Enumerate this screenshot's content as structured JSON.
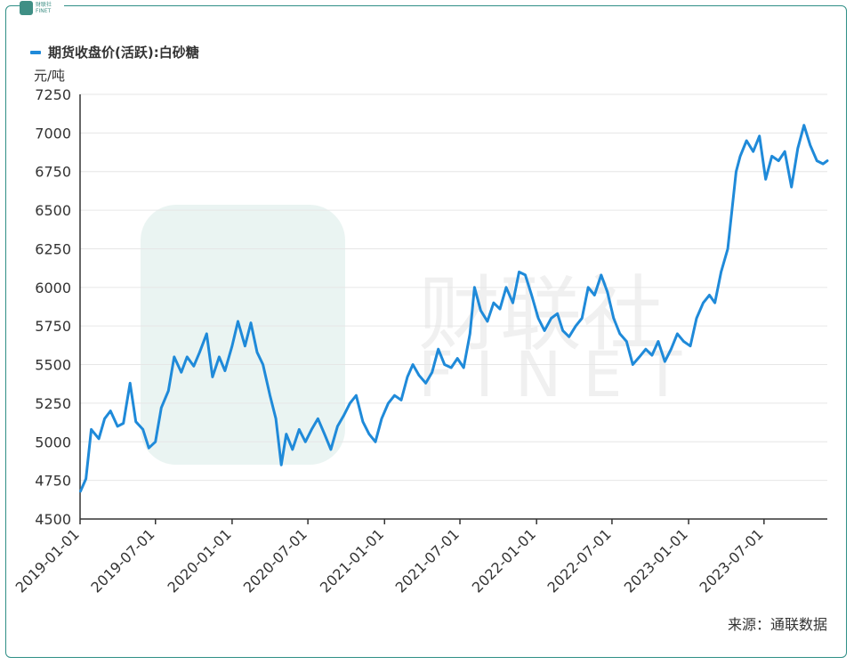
{
  "logo": {
    "text_cn": "财联社",
    "text_en": "FINET"
  },
  "watermark": {
    "text_cn": "财联社",
    "text_en": "FINET"
  },
  "unit_label": "元/吨",
  "source": "来源：通联数据",
  "chart_data": {
    "type": "line",
    "title": "",
    "ylabel": "元/吨",
    "xlabel": "",
    "ylim": [
      4500,
      7250
    ],
    "yticks": [
      4500,
      4750,
      5000,
      5250,
      5500,
      5750,
      6000,
      6250,
      6500,
      6750,
      7000,
      7250
    ],
    "xlim": [
      "2019-01-01",
      "2023-11-30"
    ],
    "xticks": [
      "2019-01-01",
      "2019-07-01",
      "2020-01-01",
      "2020-07-01",
      "2021-01-01",
      "2021-07-01",
      "2022-01-01",
      "2022-07-01",
      "2023-01-01",
      "2023-07-01"
    ],
    "grid": "horizontal",
    "legend_position": "top-left",
    "series": [
      {
        "name": "期货收盘价(活跃):白砂糖",
        "color": "#1f8ad9",
        "points": [
          [
            "2019-01-02",
            4680
          ],
          [
            "2019-01-15",
            4760
          ],
          [
            "2019-01-28",
            5080
          ],
          [
            "2019-02-15",
            5020
          ],
          [
            "2019-03-01",
            5150
          ],
          [
            "2019-03-15",
            5200
          ],
          [
            "2019-04-01",
            5100
          ],
          [
            "2019-04-15",
            5120
          ],
          [
            "2019-05-01",
            5380
          ],
          [
            "2019-05-15",
            5130
          ],
          [
            "2019-06-01",
            5080
          ],
          [
            "2019-06-15",
            4960
          ],
          [
            "2019-07-01",
            5000
          ],
          [
            "2019-07-15",
            5220
          ],
          [
            "2019-08-01",
            5330
          ],
          [
            "2019-08-15",
            5550
          ],
          [
            "2019-09-01",
            5450
          ],
          [
            "2019-09-15",
            5550
          ],
          [
            "2019-10-01",
            5490
          ],
          [
            "2019-10-15",
            5580
          ],
          [
            "2019-11-01",
            5700
          ],
          [
            "2019-11-15",
            5420
          ],
          [
            "2019-12-01",
            5550
          ],
          [
            "2019-12-15",
            5460
          ],
          [
            "2020-01-01",
            5620
          ],
          [
            "2020-01-15",
            5780
          ],
          [
            "2020-02-01",
            5620
          ],
          [
            "2020-02-15",
            5770
          ],
          [
            "2020-03-01",
            5580
          ],
          [
            "2020-03-15",
            5500
          ],
          [
            "2020-04-01",
            5300
          ],
          [
            "2020-04-15",
            5150
          ],
          [
            "2020-04-28",
            4850
          ],
          [
            "2020-05-10",
            5050
          ],
          [
            "2020-05-25",
            4950
          ],
          [
            "2020-06-10",
            5080
          ],
          [
            "2020-06-25",
            5000
          ],
          [
            "2020-07-10",
            5080
          ],
          [
            "2020-07-25",
            5150
          ],
          [
            "2020-08-10",
            5050
          ],
          [
            "2020-08-25",
            4950
          ],
          [
            "2020-09-10",
            5100
          ],
          [
            "2020-09-25",
            5170
          ],
          [
            "2020-10-10",
            5250
          ],
          [
            "2020-10-25",
            5300
          ],
          [
            "2020-11-10",
            5130
          ],
          [
            "2020-11-25",
            5050
          ],
          [
            "2020-12-10",
            5000
          ],
          [
            "2020-12-25",
            5150
          ],
          [
            "2021-01-10",
            5250
          ],
          [
            "2021-01-25",
            5300
          ],
          [
            "2021-02-10",
            5270
          ],
          [
            "2021-02-25",
            5420
          ],
          [
            "2021-03-10",
            5500
          ],
          [
            "2021-03-25",
            5430
          ],
          [
            "2021-04-10",
            5380
          ],
          [
            "2021-04-25",
            5450
          ],
          [
            "2021-05-10",
            5600
          ],
          [
            "2021-05-25",
            5500
          ],
          [
            "2021-06-10",
            5480
          ],
          [
            "2021-06-25",
            5540
          ],
          [
            "2021-07-10",
            5480
          ],
          [
            "2021-07-25",
            5700
          ],
          [
            "2021-08-05",
            6000
          ],
          [
            "2021-08-20",
            5850
          ],
          [
            "2021-09-05",
            5780
          ],
          [
            "2021-09-20",
            5900
          ],
          [
            "2021-10-05",
            5860
          ],
          [
            "2021-10-20",
            6000
          ],
          [
            "2021-11-05",
            5900
          ],
          [
            "2021-11-20",
            6100
          ],
          [
            "2021-12-05",
            6080
          ],
          [
            "2021-12-20",
            5950
          ],
          [
            "2022-01-05",
            5800
          ],
          [
            "2022-01-20",
            5720
          ],
          [
            "2022-02-05",
            5800
          ],
          [
            "2022-02-20",
            5830
          ],
          [
            "2022-03-05",
            5720
          ],
          [
            "2022-03-20",
            5680
          ],
          [
            "2022-04-05",
            5750
          ],
          [
            "2022-04-20",
            5800
          ],
          [
            "2022-05-05",
            6000
          ],
          [
            "2022-05-20",
            5950
          ],
          [
            "2022-06-05",
            6080
          ],
          [
            "2022-06-20",
            5970
          ],
          [
            "2022-07-05",
            5800
          ],
          [
            "2022-07-20",
            5700
          ],
          [
            "2022-08-05",
            5650
          ],
          [
            "2022-08-20",
            5500
          ],
          [
            "2022-09-05",
            5550
          ],
          [
            "2022-09-20",
            5600
          ],
          [
            "2022-10-05",
            5560
          ],
          [
            "2022-10-20",
            5650
          ],
          [
            "2022-11-05",
            5520
          ],
          [
            "2022-11-20",
            5600
          ],
          [
            "2022-12-05",
            5700
          ],
          [
            "2022-12-20",
            5650
          ],
          [
            "2023-01-05",
            5620
          ],
          [
            "2023-01-20",
            5800
          ],
          [
            "2023-02-05",
            5900
          ],
          [
            "2023-02-20",
            5950
          ],
          [
            "2023-03-05",
            5900
          ],
          [
            "2023-03-20",
            6100
          ],
          [
            "2023-04-05",
            6250
          ],
          [
            "2023-04-15",
            6500
          ],
          [
            "2023-04-25",
            6750
          ],
          [
            "2023-05-05",
            6850
          ],
          [
            "2023-05-20",
            6950
          ],
          [
            "2023-06-05",
            6880
          ],
          [
            "2023-06-20",
            6980
          ],
          [
            "2023-07-05",
            6700
          ],
          [
            "2023-07-20",
            6850
          ],
          [
            "2023-08-05",
            6820
          ],
          [
            "2023-08-20",
            6880
          ],
          [
            "2023-09-05",
            6650
          ],
          [
            "2023-09-20",
            6900
          ],
          [
            "2023-10-05",
            7050
          ],
          [
            "2023-10-20",
            6920
          ],
          [
            "2023-11-05",
            6820
          ],
          [
            "2023-11-20",
            6800
          ],
          [
            "2023-11-30",
            6820
          ]
        ]
      }
    ]
  }
}
